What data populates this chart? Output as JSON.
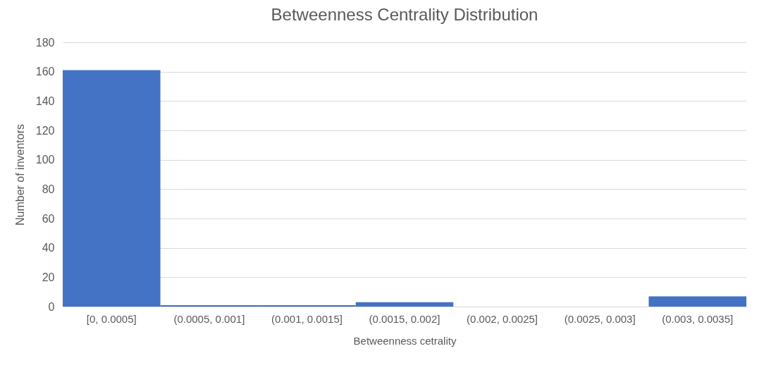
{
  "chart_data": {
    "type": "bar",
    "title": "Betweenness Centrality Distribution",
    "xlabel": "Betweenness cetrality",
    "ylabel": "Number of inventors",
    "categories": [
      "[0, 0.0005]",
      "(0.0005, 0.001]",
      "(0.001, 0.0015]",
      "(0.0015, 0.002]",
      "(0.002, 0.0025]",
      "(0.0025, 0.003]",
      "(0.003, 0.0035]"
    ],
    "values": [
      161,
      1,
      1,
      3,
      0,
      0,
      7
    ],
    "color": "#4472c4",
    "ylim": [
      0,
      180
    ],
    "yticks": [
      0,
      20,
      40,
      60,
      80,
      100,
      120,
      140,
      160,
      180
    ],
    "grid": "y"
  }
}
